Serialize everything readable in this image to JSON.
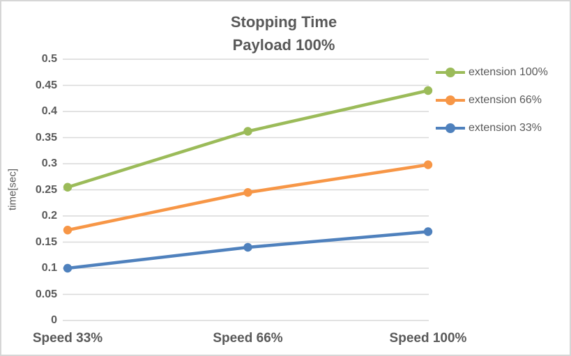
{
  "chart_data": {
    "type": "line",
    "title_lines": [
      "Stopping Time",
      "Payload 100%"
    ],
    "categories": [
      "Speed 33%",
      "Speed 66%",
      "Speed 100%"
    ],
    "series": [
      {
        "name": "extension 100%",
        "color": "#9BBB59",
        "values": [
          0.255,
          0.362,
          0.44
        ]
      },
      {
        "name": "extension 66%",
        "color": "#F79646",
        "values": [
          0.173,
          0.245,
          0.298
        ]
      },
      {
        "name": "extension 33%",
        "color": "#4F81BD",
        "values": [
          0.1,
          0.14,
          0.17
        ]
      }
    ],
    "xlabel": "",
    "ylabel": "time[sec]",
    "ylim": [
      0,
      0.5
    ],
    "ytick_step": 0.05,
    "ytick_labels": [
      "0",
      "0.05",
      "0.1",
      "0.15",
      "0.2",
      "0.25",
      "0.3",
      "0.35",
      "0.4",
      "0.45",
      "0.5"
    ],
    "grid": true,
    "legend_position": "right",
    "marker": "circle"
  },
  "styles": {
    "text_color": "#595959",
    "grid_color": "#D9D9D9",
    "border_color": "#D6D6D6",
    "background": "#FFFFFF"
  }
}
